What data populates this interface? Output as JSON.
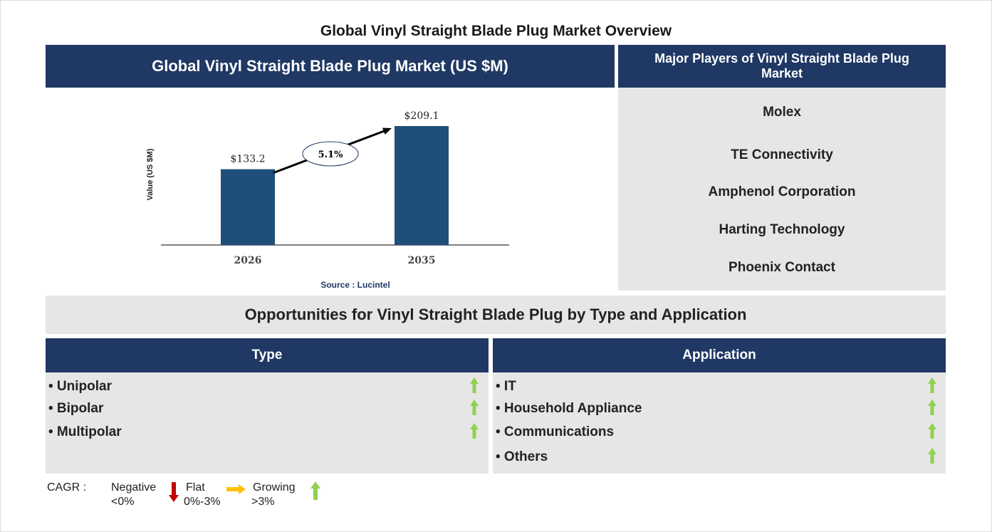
{
  "title": "Global Vinyl Straight Blade Plug Market Overview",
  "market_header": "Global Vinyl Straight Blade Plug Market (US $M)",
  "players_header": "Major Players of Vinyl Straight Blade Plug Market",
  "players": [
    "Molex",
    "TE Connectivity",
    "Amphenol Corporation",
    "Harting Technology",
    "Phoenix Contact"
  ],
  "source": "Source : Lucintel",
  "opportunities_title": "Opportunities for Vinyl Straight Blade Plug by Type and Application",
  "type": {
    "header": "Type",
    "items": [
      "• Unipolar",
      "• Bipolar",
      "• Multipolar"
    ],
    "trend": "growing"
  },
  "application": {
    "header": "Application",
    "items": [
      "• IT",
      "• Household Appliance",
      "• Communications",
      "• Others"
    ],
    "trend": "growing"
  },
  "legend": {
    "label": "CAGR :",
    "negative": "Negative",
    "negative_range": "<0%",
    "flat": "Flat",
    "flat_range": "0%-3%",
    "growing": "Growing",
    "growing_range": ">3%",
    "colors": {
      "negative": "#c00000",
      "flat": "#ffc000",
      "growing": "#92d050"
    }
  },
  "chart_data": {
    "type": "bar",
    "categories": [
      "2026",
      "2035"
    ],
    "values": [
      133.2,
      209.1
    ],
    "labels": [
      "$133.2",
      "$209.1"
    ],
    "ylabel": "Value (US $M)",
    "cagr_label": "5.1%",
    "bar_color": "#1f4e79",
    "ylim": [
      0,
      209.1
    ]
  }
}
